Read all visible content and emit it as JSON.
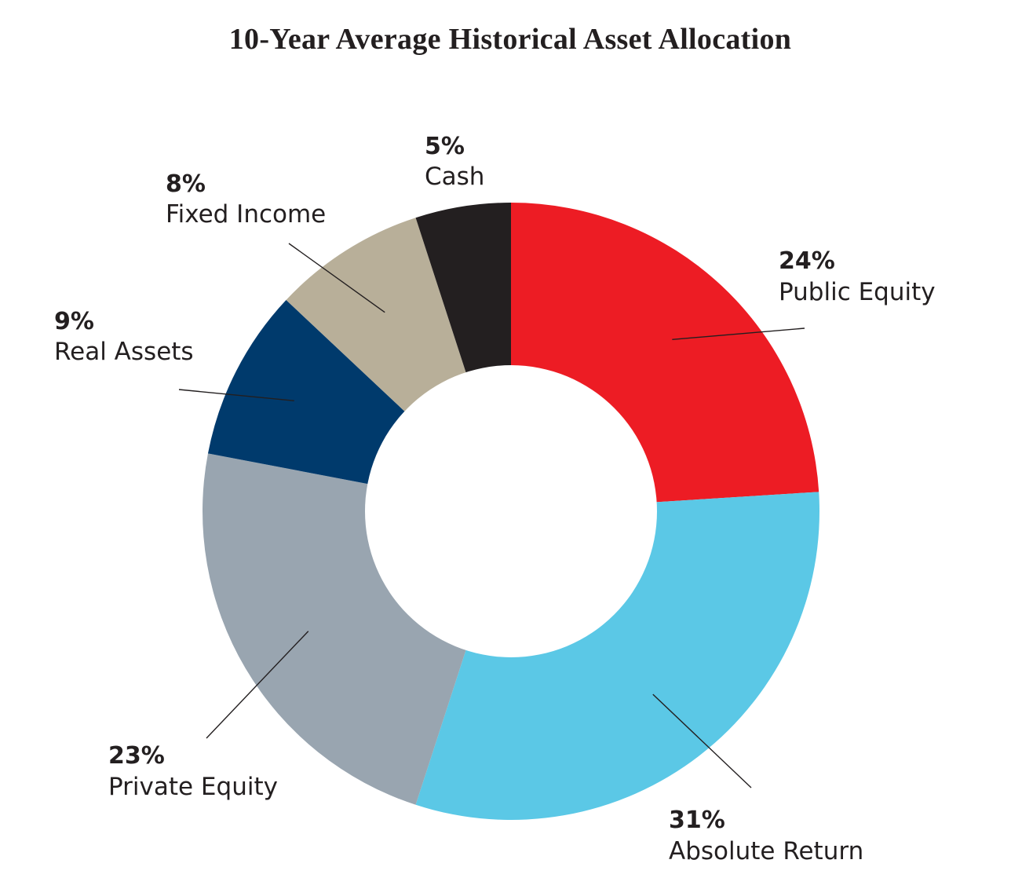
{
  "chart_data": {
    "type": "pie",
    "title": "10-Year Average Historical Asset Allocation",
    "donut": true,
    "slices": [
      {
        "label": "Public Equity",
        "percent_label": "24%",
        "value": 24,
        "color": "#ed1c24"
      },
      {
        "label": "Absolute Return",
        "percent_label": "31%",
        "value": 31,
        "color": "#5bc8e6"
      },
      {
        "label": "Private Equity",
        "percent_label": "23%",
        "value": 23,
        "color": "#99a5b0"
      },
      {
        "label": "Real Assets",
        "percent_label": "9%",
        "value": 9,
        "color": "#003a6c"
      },
      {
        "label": "Fixed Income",
        "percent_label": "8%",
        "value": 8,
        "color": "#b8af99"
      },
      {
        "label": "Cash",
        "percent_label": "5%",
        "value": 5,
        "color": "#231f20"
      }
    ]
  }
}
